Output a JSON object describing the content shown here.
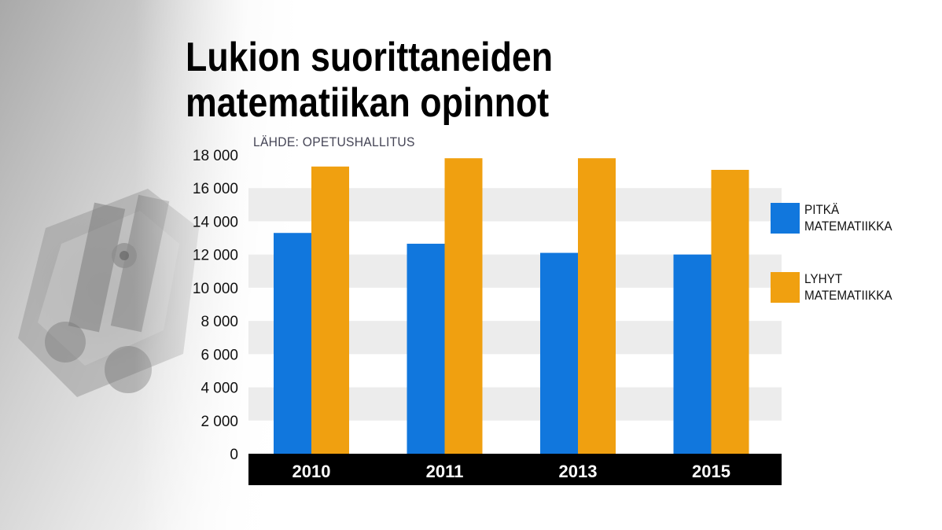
{
  "title_lines": [
    "Lukion suorittaneiden",
    "matematiikan opinnot"
  ],
  "source": "LÄHDE: OPETUSHALLITUS",
  "colors": {
    "series_1": "#1177dd",
    "series_2": "#f0a010",
    "band": "#ececec",
    "axis_bar": "#000000"
  },
  "chart_data": {
    "type": "bar",
    "categories": [
      "2010",
      "2011",
      "2013",
      "2015"
    ],
    "series": [
      {
        "name": "PITKÄ MATEMATIIKKA",
        "values": [
          13300,
          12650,
          12100,
          12000
        ]
      },
      {
        "name": "LYHYT MATEMATIIKKA",
        "values": [
          17300,
          17800,
          17800,
          17100
        ]
      }
    ],
    "y_ticks": [
      "0",
      "2 000",
      "4 000",
      "6 000",
      "8 000",
      "10 000",
      "12 000",
      "14 000",
      "16 000",
      "18 000"
    ],
    "ylim": [
      0,
      18000
    ],
    "grid": "alternating horizontal bands",
    "legend_position": "right"
  },
  "legend": [
    {
      "label_lines": [
        "PITKÄ",
        "MATEMATIIKKA"
      ]
    },
    {
      "label_lines": [
        "LYHYT",
        "MATEMATIIKKA"
      ]
    }
  ]
}
